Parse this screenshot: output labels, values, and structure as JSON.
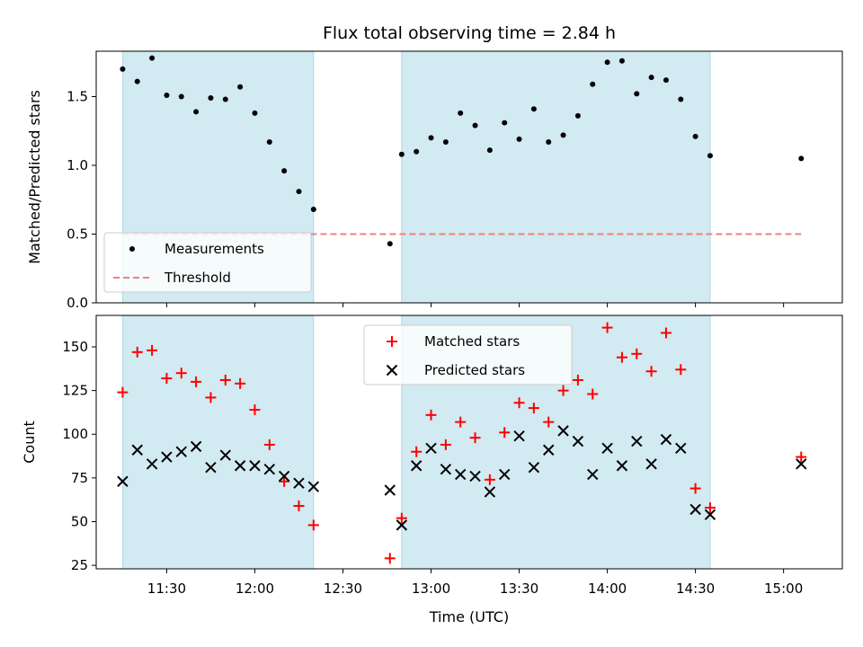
{
  "chart_data": {
    "type": "scatter",
    "title": "Flux total observing time = 2.84 h",
    "xlabel": "Time (UTC)",
    "x_ticks": [
      "11:30",
      "12:00",
      "12:30",
      "13:00",
      "13:30",
      "14:00",
      "14:30",
      "15:00"
    ],
    "xlim": [
      "11:06",
      "15:20"
    ],
    "shaded_intervals": [
      [
        "11:15",
        "12:20"
      ],
      [
        "12:50",
        "14:35"
      ]
    ],
    "shade_color": "#add8e6",
    "panels": [
      {
        "ylabel": "Matched/Predicted stars",
        "ylim": [
          0,
          1.83
        ],
        "y_ticks": [
          0.0,
          0.5,
          1.0,
          1.5
        ],
        "y_tick_labels": [
          "0.0",
          "0.5",
          "1.0",
          "1.5"
        ],
        "legend": "lower-left",
        "series": [
          {
            "name": "Measurements",
            "marker": "dot",
            "color": "#000000",
            "points": [
              [
                "11:15",
                1.7
              ],
              [
                "11:20",
                1.61
              ],
              [
                "11:25",
                1.78
              ],
              [
                "11:30",
                1.51
              ],
              [
                "11:35",
                1.5
              ],
              [
                "11:40",
                1.39
              ],
              [
                "11:45",
                1.49
              ],
              [
                "11:50",
                1.48
              ],
              [
                "11:55",
                1.57
              ],
              [
                "12:00",
                1.38
              ],
              [
                "12:05",
                1.17
              ],
              [
                "12:10",
                0.96
              ],
              [
                "12:15",
                0.81
              ],
              [
                "12:20",
                0.68
              ],
              [
                "12:46",
                0.43
              ],
              [
                "12:50",
                1.08
              ],
              [
                "12:55",
                1.1
              ],
              [
                "13:00",
                1.2
              ],
              [
                "13:05",
                1.17
              ],
              [
                "13:10",
                1.38
              ],
              [
                "13:15",
                1.29
              ],
              [
                "13:20",
                1.11
              ],
              [
                "13:25",
                1.31
              ],
              [
                "13:30",
                1.19
              ],
              [
                "13:35",
                1.41
              ],
              [
                "13:40",
                1.17
              ],
              [
                "13:45",
                1.22
              ],
              [
                "13:50",
                1.36
              ],
              [
                "13:55",
                1.59
              ],
              [
                "14:00",
                1.75
              ],
              [
                "14:05",
                1.76
              ],
              [
                "14:10",
                1.52
              ],
              [
                "14:15",
                1.64
              ],
              [
                "14:20",
                1.62
              ],
              [
                "14:25",
                1.48
              ],
              [
                "14:30",
                1.21
              ],
              [
                "14:35",
                1.07
              ],
              [
                "15:06",
                1.05
              ]
            ]
          },
          {
            "name": "Threshold",
            "type": "line",
            "dashed": true,
            "color": "#f08080",
            "points": [
              [
                "11:15",
                0.5
              ],
              [
                "15:06",
                0.5
              ]
            ]
          }
        ]
      },
      {
        "ylabel": "Count",
        "ylim": [
          23,
          168
        ],
        "y_ticks": [
          25,
          50,
          75,
          100,
          125,
          150
        ],
        "y_tick_labels": [
          "25",
          "50",
          "75",
          "100",
          "125",
          "150"
        ],
        "legend": "upper-center",
        "series": [
          {
            "name": "Matched stars",
            "marker": "plus",
            "color": "#ff0000",
            "points": [
              [
                "11:15",
                124
              ],
              [
                "11:20",
                147
              ],
              [
                "11:25",
                148
              ],
              [
                "11:30",
                132
              ],
              [
                "11:35",
                135
              ],
              [
                "11:40",
                130
              ],
              [
                "11:45",
                121
              ],
              [
                "11:50",
                131
              ],
              [
                "11:55",
                129
              ],
              [
                "12:00",
                114
              ],
              [
                "12:05",
                94
              ],
              [
                "12:10",
                73
              ],
              [
                "12:15",
                59
              ],
              [
                "12:20",
                48
              ],
              [
                "12:46",
                29
              ],
              [
                "12:50",
                52
              ],
              [
                "12:55",
                90
              ],
              [
                "13:00",
                111
              ],
              [
                "13:05",
                94
              ],
              [
                "13:10",
                107
              ],
              [
                "13:15",
                98
              ],
              [
                "13:20",
                74
              ],
              [
                "13:25",
                101
              ],
              [
                "13:30",
                118
              ],
              [
                "13:35",
                115
              ],
              [
                "13:40",
                107
              ],
              [
                "13:45",
                125
              ],
              [
                "13:50",
                131
              ],
              [
                "13:55",
                123
              ],
              [
                "14:00",
                161
              ],
              [
                "14:05",
                144
              ],
              [
                "14:10",
                146
              ],
              [
                "14:15",
                136
              ],
              [
                "14:20",
                158
              ],
              [
                "14:25",
                137
              ],
              [
                "14:30",
                69
              ],
              [
                "14:35",
                58
              ],
              [
                "15:06",
                87
              ]
            ]
          },
          {
            "name": "Predicted stars",
            "marker": "x",
            "color": "#000000",
            "points": [
              [
                "11:15",
                73
              ],
              [
                "11:20",
                91
              ],
              [
                "11:25",
                83
              ],
              [
                "11:30",
                87
              ],
              [
                "11:35",
                90
              ],
              [
                "11:40",
                93
              ],
              [
                "11:45",
                81
              ],
              [
                "11:50",
                88
              ],
              [
                "11:55",
                82
              ],
              [
                "12:00",
                82
              ],
              [
                "12:05",
                80
              ],
              [
                "12:10",
                76
              ],
              [
                "12:15",
                72
              ],
              [
                "12:20",
                70
              ],
              [
                "12:46",
                68
              ],
              [
                "12:50",
                48
              ],
              [
                "12:55",
                82
              ],
              [
                "13:00",
                92
              ],
              [
                "13:05",
                80
              ],
              [
                "13:10",
                77
              ],
              [
                "13:15",
                76
              ],
              [
                "13:20",
                67
              ],
              [
                "13:25",
                77
              ],
              [
                "13:30",
                99
              ],
              [
                "13:35",
                81
              ],
              [
                "13:40",
                91
              ],
              [
                "13:45",
                102
              ],
              [
                "13:50",
                96
              ],
              [
                "13:55",
                77
              ],
              [
                "14:00",
                92
              ],
              [
                "14:05",
                82
              ],
              [
                "14:10",
                96
              ],
              [
                "14:15",
                83
              ],
              [
                "14:20",
                97
              ],
              [
                "14:25",
                92
              ],
              [
                "14:30",
                57
              ],
              [
                "14:35",
                54
              ],
              [
                "15:06",
                83
              ]
            ]
          }
        ]
      }
    ]
  }
}
